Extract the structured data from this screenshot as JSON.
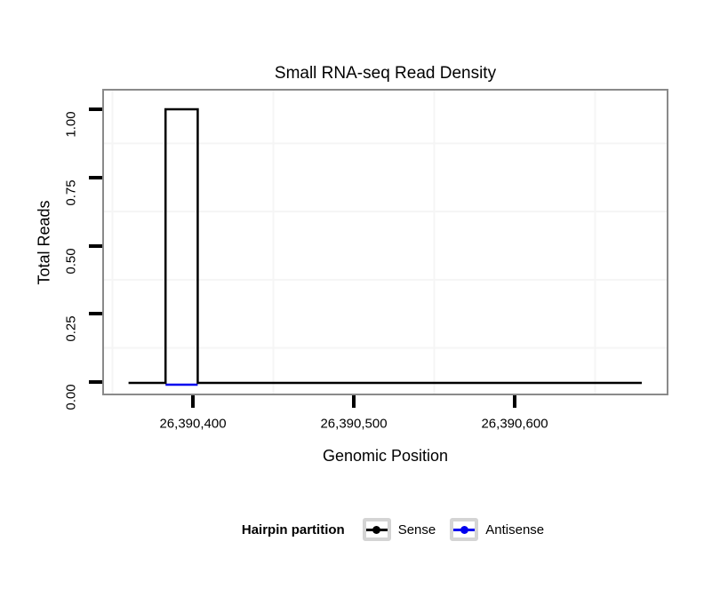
{
  "chart_data": {
    "type": "line",
    "subtype": "step",
    "title": "Small RNA-seq Read Density",
    "xlabel": "Genomic Position",
    "ylabel": "Total Reads",
    "x_ticks": [
      {
        "value": 26390400,
        "label": "26,390,400"
      },
      {
        "value": 26390500,
        "label": "26,390,500"
      },
      {
        "value": 26390600,
        "label": "26,390,600"
      }
    ],
    "y_ticks": [
      {
        "value": 0.0,
        "label": "0.00"
      },
      {
        "value": 0.25,
        "label": "0.25"
      },
      {
        "value": 0.5,
        "label": "0.50"
      },
      {
        "value": 0.75,
        "label": "0.75"
      },
      {
        "value": 1.0,
        "label": "1.00"
      }
    ],
    "xlim": [
      26390345,
      26390695
    ],
    "ylim": [
      -0.02,
      1.06
    ],
    "grid": {
      "major": "none",
      "minor_x": [
        26390350,
        26390450,
        26390550,
        26390650
      ],
      "minor_y": [
        0.125,
        0.375,
        0.625,
        0.875
      ],
      "color": "#f5f5f5"
    },
    "series": [
      {
        "name": "Sense",
        "color": "#000000",
        "style": "step-line",
        "x_start": 26390360,
        "x_end": 26390679,
        "baseline_value": 0,
        "peak": {
          "x_start": 26390383,
          "x_end": 26390403,
          "value": 1.0
        }
      },
      {
        "name": "Antisense",
        "color": "#0000EE",
        "style": "step-line",
        "x_start": 26390383,
        "x_end": 26390403,
        "baseline_value": 0,
        "peak": null
      }
    ],
    "legend": {
      "title": "Hairpin partition",
      "position": "bottom",
      "entries": [
        {
          "label": "Sense",
          "color": "#000000"
        },
        {
          "label": "Antisense",
          "color": "#0000EE"
        }
      ]
    },
    "panel_border_color": "#8a8a8a",
    "legend_key_border_color": "#d4d4d4"
  }
}
